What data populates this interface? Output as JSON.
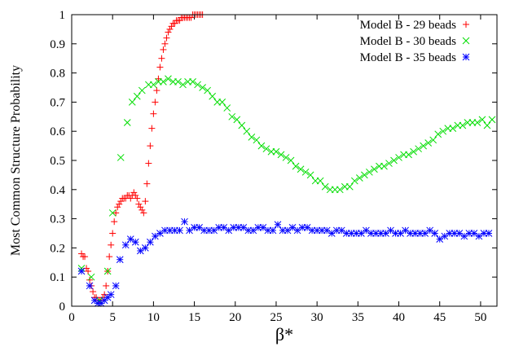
{
  "chart_data": {
    "type": "scatter",
    "title": "",
    "xlabel": "β*",
    "ylabel": "Most Common Structure Probability",
    "xlim": [
      0,
      52
    ],
    "ylim": [
      0,
      1
    ],
    "xticks": [
      0,
      5,
      10,
      15,
      20,
      25,
      30,
      35,
      40,
      45,
      50
    ],
    "yticks": [
      0,
      0.1,
      0.2,
      0.3,
      0.4,
      0.5,
      0.6,
      0.7,
      0.8,
      0.9,
      1
    ],
    "grid": false,
    "legend": "top-right",
    "series": [
      {
        "name": "Model B - 29 beads",
        "marker": "plus",
        "color": "#ff0000",
        "x": [
          1.2,
          1.4,
          1.6,
          1.8,
          2.0,
          2.2,
          2.4,
          2.6,
          2.8,
          3.0,
          3.2,
          3.4,
          3.6,
          3.8,
          4.0,
          4.2,
          4.4,
          4.6,
          4.8,
          5.0,
          5.2,
          5.4,
          5.6,
          5.8,
          6.0,
          6.2,
          6.4,
          6.6,
          6.8,
          7.0,
          7.2,
          7.4,
          7.6,
          7.8,
          8.0,
          8.2,
          8.4,
          8.6,
          8.8,
          9.0,
          9.2,
          9.4,
          9.6,
          9.8,
          10.0,
          10.2,
          10.4,
          10.6,
          10.8,
          11.0,
          11.2,
          11.4,
          11.6,
          11.8,
          12.0,
          12.2,
          12.4,
          12.6,
          12.8,
          13.0,
          13.2,
          13.4,
          13.6,
          13.8,
          14.0,
          14.2,
          14.4,
          14.6,
          14.8,
          15.0,
          15.2,
          15.4,
          15.6,
          15.8,
          16.0
        ],
        "y": [
          0.18,
          0.17,
          0.17,
          0.13,
          0.12,
          0.09,
          0.07,
          0.05,
          0.03,
          0.03,
          0.02,
          0.02,
          0.02,
          0.03,
          0.04,
          0.07,
          0.12,
          0.17,
          0.21,
          0.25,
          0.29,
          0.32,
          0.34,
          0.35,
          0.36,
          0.37,
          0.37,
          0.37,
          0.38,
          0.38,
          0.37,
          0.38,
          0.39,
          0.38,
          0.37,
          0.35,
          0.34,
          0.33,
          0.32,
          0.36,
          0.42,
          0.49,
          0.55,
          0.61,
          0.66,
          0.7,
          0.74,
          0.78,
          0.82,
          0.85,
          0.88,
          0.9,
          0.92,
          0.94,
          0.95,
          0.96,
          0.97,
          0.97,
          0.98,
          0.98,
          0.98,
          0.99,
          0.99,
          0.99,
          0.99,
          0.99,
          0.99,
          0.99,
          1.0,
          1.0,
          1.0,
          1.0,
          1.0,
          1.0,
          1.0
        ]
      },
      {
        "name": "Model B - 30 beads",
        "marker": "cross",
        "color": "#00dd00",
        "x": [
          1.2,
          2.4,
          3.4,
          4.4,
          5.0,
          6.0,
          6.8,
          7.4,
          8.0,
          8.6,
          9.4,
          10.0,
          10.6,
          11.2,
          11.8,
          12.4,
          13.0,
          13.6,
          14.2,
          14.8,
          15.4,
          16.0,
          16.6,
          17.2,
          17.8,
          18.4,
          19.0,
          19.6,
          20.2,
          20.8,
          21.4,
          22.0,
          22.6,
          23.2,
          23.8,
          24.4,
          25.0,
          25.6,
          26.2,
          26.8,
          27.4,
          28.0,
          28.6,
          29.2,
          29.8,
          30.4,
          31.0,
          31.6,
          32.2,
          32.8,
          33.4,
          34.0,
          34.6,
          35.2,
          35.8,
          36.4,
          37.0,
          37.6,
          38.2,
          38.8,
          39.4,
          40.0,
          40.6,
          41.2,
          41.8,
          42.4,
          43.0,
          43.6,
          44.2,
          44.8,
          45.4,
          46.0,
          46.6,
          47.2,
          47.8,
          48.4,
          49.0,
          49.6,
          50.2,
          50.8,
          51.4
        ],
        "y": [
          0.13,
          0.1,
          0.02,
          0.12,
          0.32,
          0.51,
          0.63,
          0.7,
          0.72,
          0.74,
          0.76,
          0.76,
          0.77,
          0.77,
          0.78,
          0.77,
          0.77,
          0.76,
          0.77,
          0.77,
          0.76,
          0.75,
          0.74,
          0.72,
          0.7,
          0.7,
          0.68,
          0.65,
          0.64,
          0.62,
          0.6,
          0.58,
          0.57,
          0.55,
          0.54,
          0.53,
          0.53,
          0.52,
          0.51,
          0.5,
          0.48,
          0.47,
          0.46,
          0.45,
          0.43,
          0.43,
          0.41,
          0.4,
          0.4,
          0.4,
          0.41,
          0.41,
          0.43,
          0.44,
          0.45,
          0.46,
          0.47,
          0.48,
          0.48,
          0.49,
          0.5,
          0.51,
          0.52,
          0.52,
          0.53,
          0.54,
          0.55,
          0.56,
          0.57,
          0.59,
          0.6,
          0.61,
          0.61,
          0.62,
          0.62,
          0.63,
          0.63,
          0.63,
          0.64,
          0.62,
          0.64
        ]
      },
      {
        "name": "Model B - 35 beads",
        "marker": "star",
        "color": "#0000ff",
        "x": [
          1.2,
          2.2,
          2.8,
          3.2,
          3.6,
          4.0,
          4.4,
          4.8,
          5.4,
          5.9,
          6.6,
          7.2,
          7.8,
          8.4,
          9.0,
          9.6,
          10.2,
          10.8,
          11.4,
          12.0,
          12.6,
          13.2,
          13.8,
          14.4,
          15.0,
          15.6,
          16.2,
          16.8,
          17.4,
          18.0,
          18.6,
          19.2,
          19.8,
          20.4,
          21.0,
          21.6,
          22.2,
          22.8,
          23.4,
          24.0,
          24.6,
          25.2,
          25.8,
          26.4,
          27.0,
          27.6,
          28.2,
          28.8,
          29.4,
          30.0,
          30.6,
          31.2,
          31.8,
          32.4,
          33.0,
          33.6,
          34.2,
          34.8,
          35.4,
          36.0,
          36.6,
          37.2,
          37.8,
          38.4,
          39.0,
          39.6,
          40.2,
          40.8,
          41.4,
          42.0,
          42.6,
          43.2,
          43.8,
          44.4,
          45.0,
          45.6,
          46.2,
          46.8,
          47.4,
          48.0,
          48.6,
          49.2,
          49.8,
          50.4,
          51.0
        ],
        "y": [
          0.12,
          0.07,
          0.02,
          0.01,
          0.01,
          0.02,
          0.03,
          0.04,
          0.07,
          0.16,
          0.21,
          0.23,
          0.22,
          0.19,
          0.2,
          0.22,
          0.24,
          0.25,
          0.26,
          0.26,
          0.26,
          0.26,
          0.29,
          0.26,
          0.27,
          0.27,
          0.26,
          0.26,
          0.26,
          0.27,
          0.27,
          0.26,
          0.27,
          0.27,
          0.27,
          0.26,
          0.26,
          0.27,
          0.27,
          0.26,
          0.26,
          0.28,
          0.26,
          0.26,
          0.27,
          0.26,
          0.27,
          0.27,
          0.26,
          0.26,
          0.26,
          0.26,
          0.25,
          0.26,
          0.26,
          0.25,
          0.25,
          0.25,
          0.25,
          0.26,
          0.25,
          0.25,
          0.25,
          0.25,
          0.26,
          0.25,
          0.25,
          0.26,
          0.25,
          0.25,
          0.25,
          0.25,
          0.26,
          0.25,
          0.23,
          0.24,
          0.25,
          0.25,
          0.25,
          0.24,
          0.25,
          0.25,
          0.24,
          0.25,
          0.25
        ]
      }
    ]
  }
}
